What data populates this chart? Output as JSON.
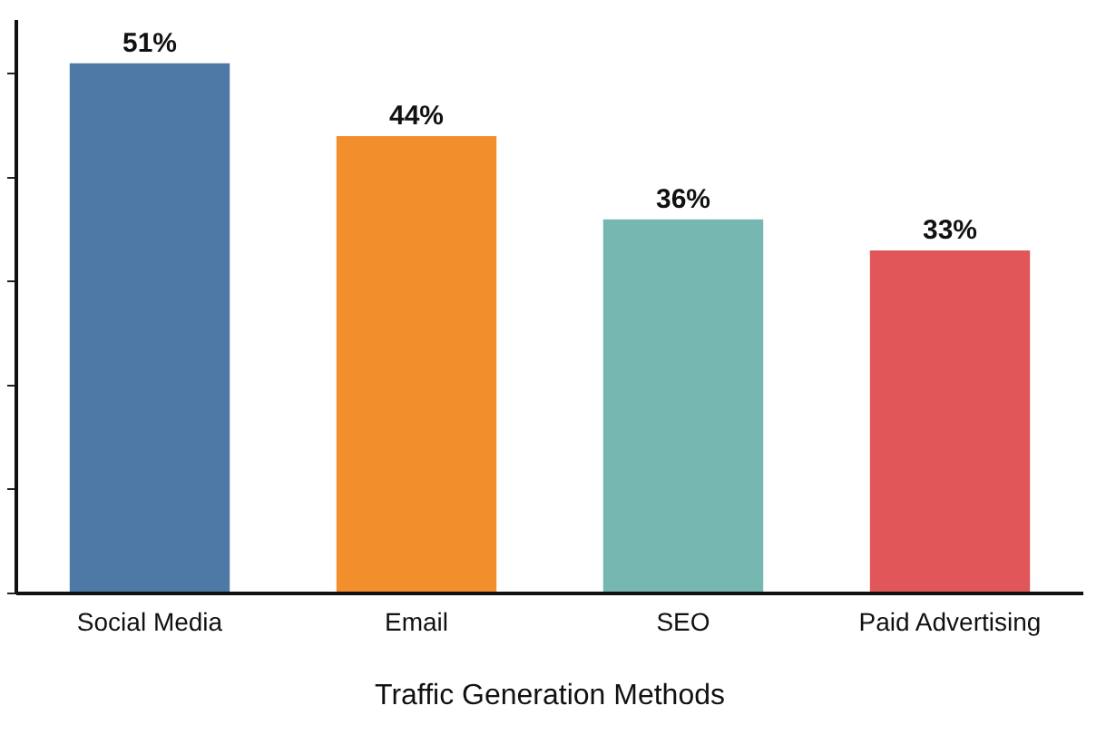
{
  "chart_data": {
    "type": "bar",
    "xlabel": "Traffic Generation Methods",
    "categories": [
      "Social Media",
      "Email",
      "SEO",
      "Paid Advertising"
    ],
    "values": [
      51,
      44,
      36,
      33
    ],
    "colors": [
      "#4e79a7",
      "#f28e2b",
      "#76b7b2",
      "#e15759"
    ],
    "value_labels": [
      "51%",
      "44%",
      "36%",
      "33%"
    ],
    "ylim": [
      0,
      55
    ],
    "yticks": [
      {
        "value": 0,
        "label": null
      },
      {
        "value": 10,
        "label": null
      },
      {
        "value": 20,
        "label": null
      },
      {
        "value": 30,
        "label": null
      },
      {
        "value": 40,
        "label": null
      },
      {
        "value": 50,
        "label": null
      }
    ],
    "tick_labels": "x",
    "grid": false,
    "legend": false
  }
}
